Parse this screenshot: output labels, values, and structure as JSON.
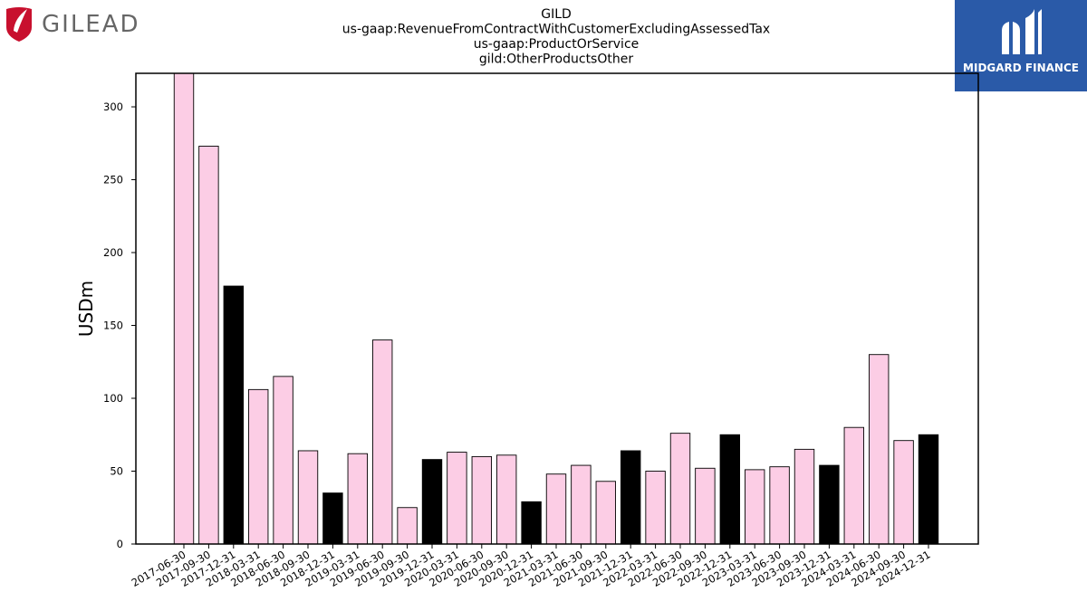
{
  "logos": {
    "company": "GILEAD",
    "publisher": "MIDGARD FINANCE"
  },
  "colors": {
    "bar_pink": "#fccde5",
    "bar_black": "#000000",
    "gilead_red": "#c8102e",
    "gilead_gray": "#666666",
    "midgard_blue": "#2a5aa8"
  },
  "chart_data": {
    "type": "bar",
    "title_lines": [
      "GILD",
      "us-gaap:RevenueFromContractWithCustomerExcludingAssessedTax",
      "us-gaap:ProductOrService",
      "gild:OtherProductsOther"
    ],
    "xlabel": "",
    "ylabel": "USDm",
    "ylim": [
      0,
      323
    ],
    "yticks": [
      0,
      50,
      100,
      150,
      200,
      250,
      300
    ],
    "grid": false,
    "categories": [
      "2017-06-30",
      "2017-09-30",
      "2017-12-31",
      "2018-03-31",
      "2018-06-30",
      "2018-09-30",
      "2018-12-31",
      "2019-03-31",
      "2019-06-30",
      "2019-09-30",
      "2019-12-31",
      "2020-03-31",
      "2020-06-30",
      "2020-09-30",
      "2020-12-31",
      "2021-03-31",
      "2021-06-30",
      "2021-09-30",
      "2021-12-31",
      "2022-03-31",
      "2022-06-30",
      "2022-09-30",
      "2022-12-31",
      "2023-03-31",
      "2023-06-30",
      "2023-09-30",
      "2023-12-31",
      "2024-03-31",
      "2024-06-30",
      "2024-09-30",
      "2024-12-31"
    ],
    "values": [
      323,
      273,
      177,
      106,
      115,
      64,
      35,
      62,
      140,
      25,
      58,
      63,
      60,
      61,
      29,
      48,
      54,
      43,
      64,
      50,
      76,
      52,
      75,
      51,
      53,
      65,
      54,
      80,
      130,
      71,
      75
    ],
    "highlight": [
      false,
      false,
      true,
      false,
      false,
      false,
      true,
      false,
      false,
      false,
      true,
      false,
      false,
      false,
      true,
      false,
      false,
      false,
      true,
      false,
      false,
      false,
      true,
      false,
      false,
      false,
      true,
      false,
      false,
      false,
      true
    ]
  }
}
